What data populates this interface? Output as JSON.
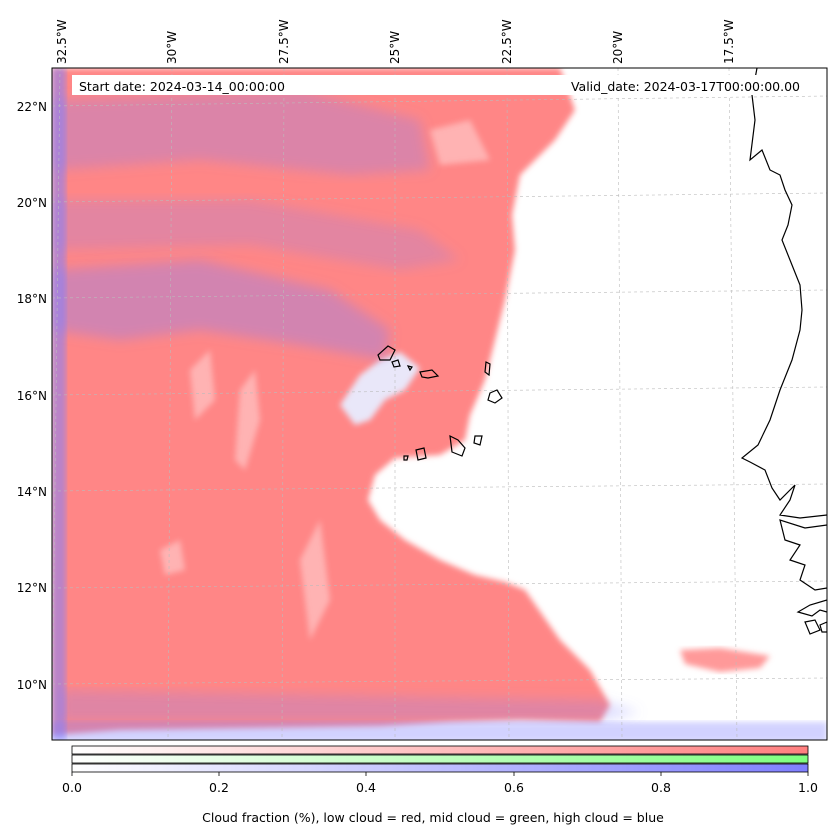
{
  "map": {
    "start_label": "Start date: 2024-03-14_00:00:00",
    "valid_label": "Valid_date: 2024-03-17T00:00:00.00",
    "lon_labels": [
      "32.5°W",
      "30°W",
      "27.5°W",
      "25°W",
      "22.5°W",
      "20°W",
      "17.5°W"
    ],
    "lat_labels": [
      "22°N",
      "20°N",
      "18°N",
      "16°N",
      "14°N",
      "12°N",
      "10°N"
    ],
    "colors": {
      "low_cloud": "#ff7f7f",
      "mid_cloud": "#7fff7f",
      "high_cloud": "#7f7fff",
      "coast": "#000000",
      "grid": "#bbbbbb"
    }
  },
  "colorbar": {
    "ticks": [
      "0.0",
      "0.2",
      "0.4",
      "0.6",
      "0.8",
      "1.0"
    ],
    "label": "Cloud fraction (%), low cloud = red, mid cloud = green, high cloud = blue"
  }
}
